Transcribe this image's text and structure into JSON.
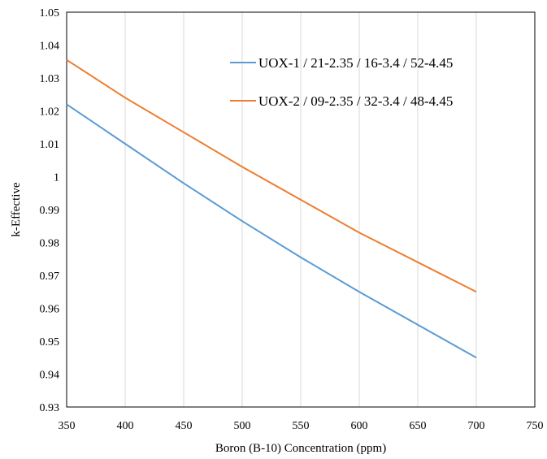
{
  "chart_data": {
    "type": "line",
    "xlabel": "Boron (B-10) Concentration  (ppm)",
    "ylabel": "k-Effective",
    "xlim": [
      350,
      750
    ],
    "ylim": [
      0.93,
      1.05
    ],
    "x_ticks": [
      "350",
      "400",
      "450",
      "500",
      "550",
      "600",
      "650",
      "700",
      "750"
    ],
    "y_ticks": [
      "0.93",
      "0.94",
      "0.95",
      "0.96",
      "0.97",
      "0.98",
      "0.99",
      "1",
      "1.01",
      "1.02",
      "1.03",
      "1.04",
      "1.05"
    ],
    "grid": "vertical",
    "legend_position": "top-right",
    "x": [
      350,
      400,
      450,
      500,
      550,
      600,
      650,
      700
    ],
    "series": [
      {
        "name": "UOX-1 / 21-2.35 / 16-3.4 / 52-4.45",
        "color": "#5b9bd5",
        "values": [
          1.022,
          1.01,
          0.998,
          0.9865,
          0.9755,
          0.965,
          0.955,
          0.945
        ]
      },
      {
        "name": "UOX-2 / 09-2.35 / 32-3.4 / 48-4.45",
        "color": "#ed7d31",
        "values": [
          1.0355,
          1.024,
          1.0135,
          1.003,
          0.993,
          0.983,
          0.974,
          0.965
        ]
      }
    ]
  }
}
